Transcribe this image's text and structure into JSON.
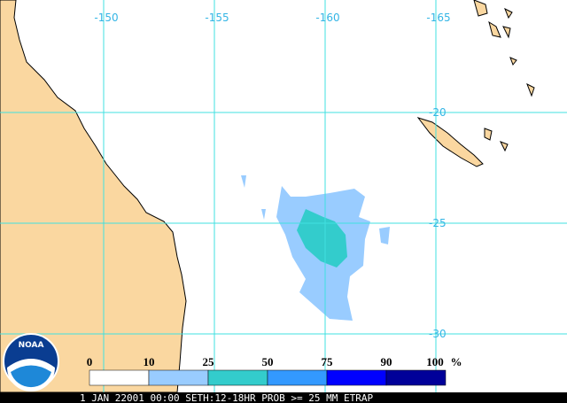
{
  "map": {
    "longitude_labels": [
      -150,
      -155,
      -160,
      -165
    ],
    "latitude_labels": [
      -20,
      -25,
      -30
    ],
    "legend": {
      "labels": [
        0,
        10,
        25,
        50,
        75,
        90,
        100
      ],
      "unit": "%",
      "colors": [
        "#ffffff",
        "#99ccff",
        "#33cccc",
        "#3399ff",
        "#0000ff",
        "#000099"
      ]
    },
    "footer": "1 JAN 22001 00:00 SETH:12-18HR PROB >= 25 MM ETRAP",
    "logo": "NOAA"
  }
}
